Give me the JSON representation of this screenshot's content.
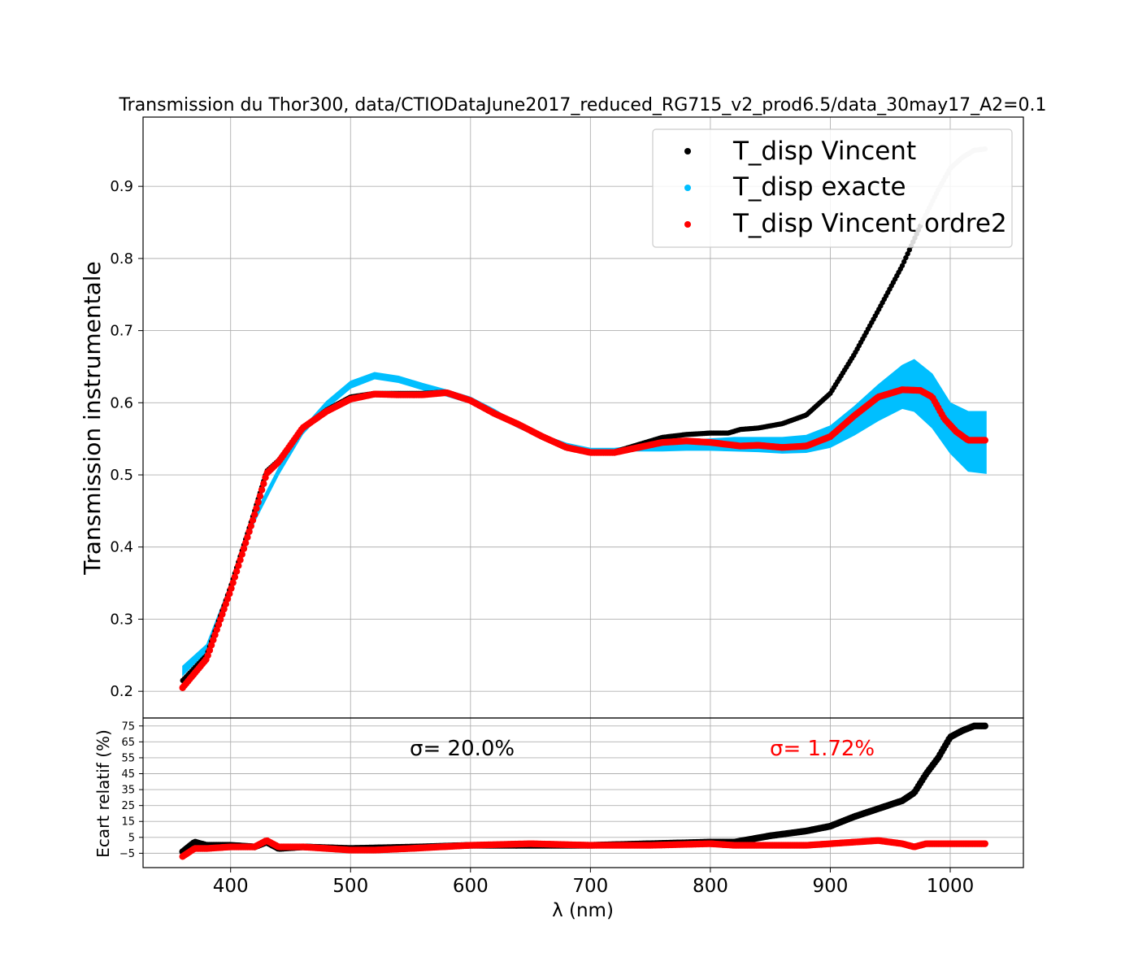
{
  "chart_data": [
    {
      "type": "scatter",
      "title": "Transmission du Thor300, data/CTIODataJune2017_reduced_RG715_v2_prod6.5/data_30may17_A2=0.1",
      "xlabel": "",
      "ylabel": "Transmission instrumentale",
      "xlim": [
        327,
        1061
      ],
      "ylim": [
        0.163,
        0.996
      ],
      "yticks": [
        0.2,
        0.3,
        0.4,
        0.5,
        0.6,
        0.7,
        0.8,
        0.9
      ],
      "ytick_labels": [
        "0.2",
        "0.3",
        "0.4",
        "0.5",
        "0.6",
        "0.7",
        "0.8",
        "0.9"
      ],
      "grid": true,
      "legend_position": "top-right",
      "series": [
        {
          "name": "T_disp Vincent",
          "color": "#000000",
          "x": [
            360,
            380,
            400,
            420,
            430,
            440,
            460,
            480,
            500,
            520,
            540,
            560,
            580,
            600,
            620,
            640,
            660,
            680,
            700,
            720,
            740,
            760,
            780,
            800,
            815,
            825,
            840,
            860,
            880,
            900,
            920,
            940,
            960,
            975,
            990,
            1000,
            1010,
            1020,
            1030
          ],
          "y": [
            0.215,
            0.25,
            0.345,
            0.45,
            0.505,
            0.52,
            0.565,
            0.59,
            0.608,
            0.613,
            0.613,
            0.613,
            0.615,
            0.603,
            0.585,
            0.57,
            0.553,
            0.538,
            0.532,
            0.532,
            0.542,
            0.552,
            0.556,
            0.558,
            0.558,
            0.563,
            0.565,
            0.571,
            0.583,
            0.613,
            0.667,
            0.728,
            0.79,
            0.845,
            0.895,
            0.925,
            0.94,
            0.95,
            0.952
          ]
        },
        {
          "name": "T_disp exacte",
          "color": "#00bfff",
          "x": [
            360,
            380,
            400,
            420,
            440,
            460,
            480,
            500,
            520,
            540,
            560,
            580,
            600,
            620,
            640,
            660,
            680,
            700,
            720,
            740,
            760,
            780,
            800,
            820,
            840,
            860,
            880,
            900,
            920,
            940,
            960,
            970,
            985,
            1000,
            1015,
            1030
          ],
          "y": [
            0.228,
            0.26,
            0.345,
            0.44,
            0.505,
            0.56,
            0.597,
            0.625,
            0.638,
            0.632,
            0.622,
            0.613,
            0.603,
            0.587,
            0.568,
            0.553,
            0.542,
            0.535,
            0.535,
            0.537,
            0.54,
            0.541,
            0.542,
            0.542,
            0.542,
            0.541,
            0.543,
            0.553,
            0.575,
            0.6,
            0.617,
            0.622,
            0.605,
            0.565,
            0.548,
            0.547
          ],
          "upper": [
            0.235,
            0.265,
            0.35,
            0.445,
            0.51,
            0.565,
            0.602,
            0.63,
            0.642,
            0.637,
            0.627,
            0.618,
            0.608,
            0.591,
            0.571,
            0.556,
            0.544,
            0.537,
            0.537,
            0.54,
            0.545,
            0.548,
            0.55,
            0.552,
            0.552,
            0.552,
            0.555,
            0.568,
            0.595,
            0.625,
            0.652,
            0.66,
            0.64,
            0.6,
            0.588,
            0.588
          ],
          "lower": [
            0.222,
            0.255,
            0.34,
            0.435,
            0.5,
            0.556,
            0.592,
            0.62,
            0.633,
            0.628,
            0.618,
            0.609,
            0.599,
            0.583,
            0.565,
            0.55,
            0.539,
            0.533,
            0.533,
            0.533,
            0.533,
            0.534,
            0.534,
            0.533,
            0.532,
            0.53,
            0.531,
            0.538,
            0.555,
            0.575,
            0.592,
            0.588,
            0.565,
            0.53,
            0.505,
            0.502
          ]
        },
        {
          "name": "T_disp Vincent ordre2",
          "color": "#ff0000",
          "x": [
            360,
            380,
            400,
            420,
            430,
            440,
            460,
            480,
            500,
            520,
            540,
            560,
            580,
            600,
            620,
            640,
            660,
            680,
            700,
            720,
            740,
            760,
            780,
            800,
            815,
            825,
            840,
            860,
            880,
            900,
            920,
            940,
            960,
            975,
            985,
            995,
            1005,
            1015,
            1030
          ],
          "y": [
            0.205,
            0.245,
            0.34,
            0.445,
            0.502,
            0.518,
            0.565,
            0.588,
            0.605,
            0.612,
            0.611,
            0.611,
            0.614,
            0.603,
            0.585,
            0.57,
            0.553,
            0.538,
            0.531,
            0.531,
            0.538,
            0.545,
            0.547,
            0.545,
            0.542,
            0.54,
            0.541,
            0.538,
            0.54,
            0.553,
            0.582,
            0.608,
            0.618,
            0.617,
            0.608,
            0.578,
            0.56,
            0.548,
            0.548
          ]
        }
      ]
    },
    {
      "type": "scatter",
      "title": "",
      "xlabel": "λ (nm)",
      "ylabel": "Ecart relatif (%)",
      "xlim": [
        327,
        1061
      ],
      "ylim": [
        -14,
        80
      ],
      "xticks": [
        400,
        500,
        600,
        700,
        800,
        900,
        1000
      ],
      "xtick_labels": [
        "400",
        "500",
        "600",
        "700",
        "800",
        "900",
        "1000"
      ],
      "yticks": [
        -5,
        5,
        15,
        25,
        35,
        45,
        55,
        65,
        75
      ],
      "ytick_labels": [
        "−5",
        "5",
        "15",
        "25",
        "35",
        "45",
        "55",
        "65",
        "75"
      ],
      "grid": true,
      "annotations": [
        {
          "text": "σ= 20.0%",
          "color": "#000000"
        },
        {
          "text": "σ= 1.72%",
          "color": "#ff0000"
        }
      ],
      "series": [
        {
          "name": "",
          "color": "#000000",
          "x": [
            360,
            370,
            380,
            400,
            420,
            430,
            440,
            460,
            500,
            560,
            600,
            650,
            700,
            750,
            800,
            820,
            850,
            870,
            880,
            900,
            920,
            940,
            960,
            970,
            980,
            990,
            1000,
            1010,
            1020,
            1030
          ],
          "y": [
            -4,
            2,
            0,
            0,
            -1,
            2,
            -2,
            -1,
            -2,
            -1,
            0,
            0,
            0,
            1,
            2,
            2,
            6,
            8,
            9,
            12,
            18,
            23,
            28,
            33,
            45,
            55,
            68,
            72,
            75,
            75
          ]
        },
        {
          "name": "",
          "color": "#ff0000",
          "x": [
            360,
            370,
            380,
            400,
            420,
            430,
            440,
            460,
            480,
            500,
            520,
            550,
            600,
            650,
            700,
            750,
            800,
            820,
            850,
            880,
            900,
            920,
            940,
            960,
            970,
            980,
            1000,
            1010,
            1030
          ],
          "y": [
            -7,
            -2,
            -2,
            -1,
            -1,
            3,
            -1,
            -1,
            -2,
            -3,
            -3,
            -2,
            0,
            1,
            0,
            0,
            1,
            0,
            0,
            0,
            1,
            2,
            3,
            1,
            -1,
            1,
            1,
            1,
            1
          ]
        }
      ]
    }
  ]
}
